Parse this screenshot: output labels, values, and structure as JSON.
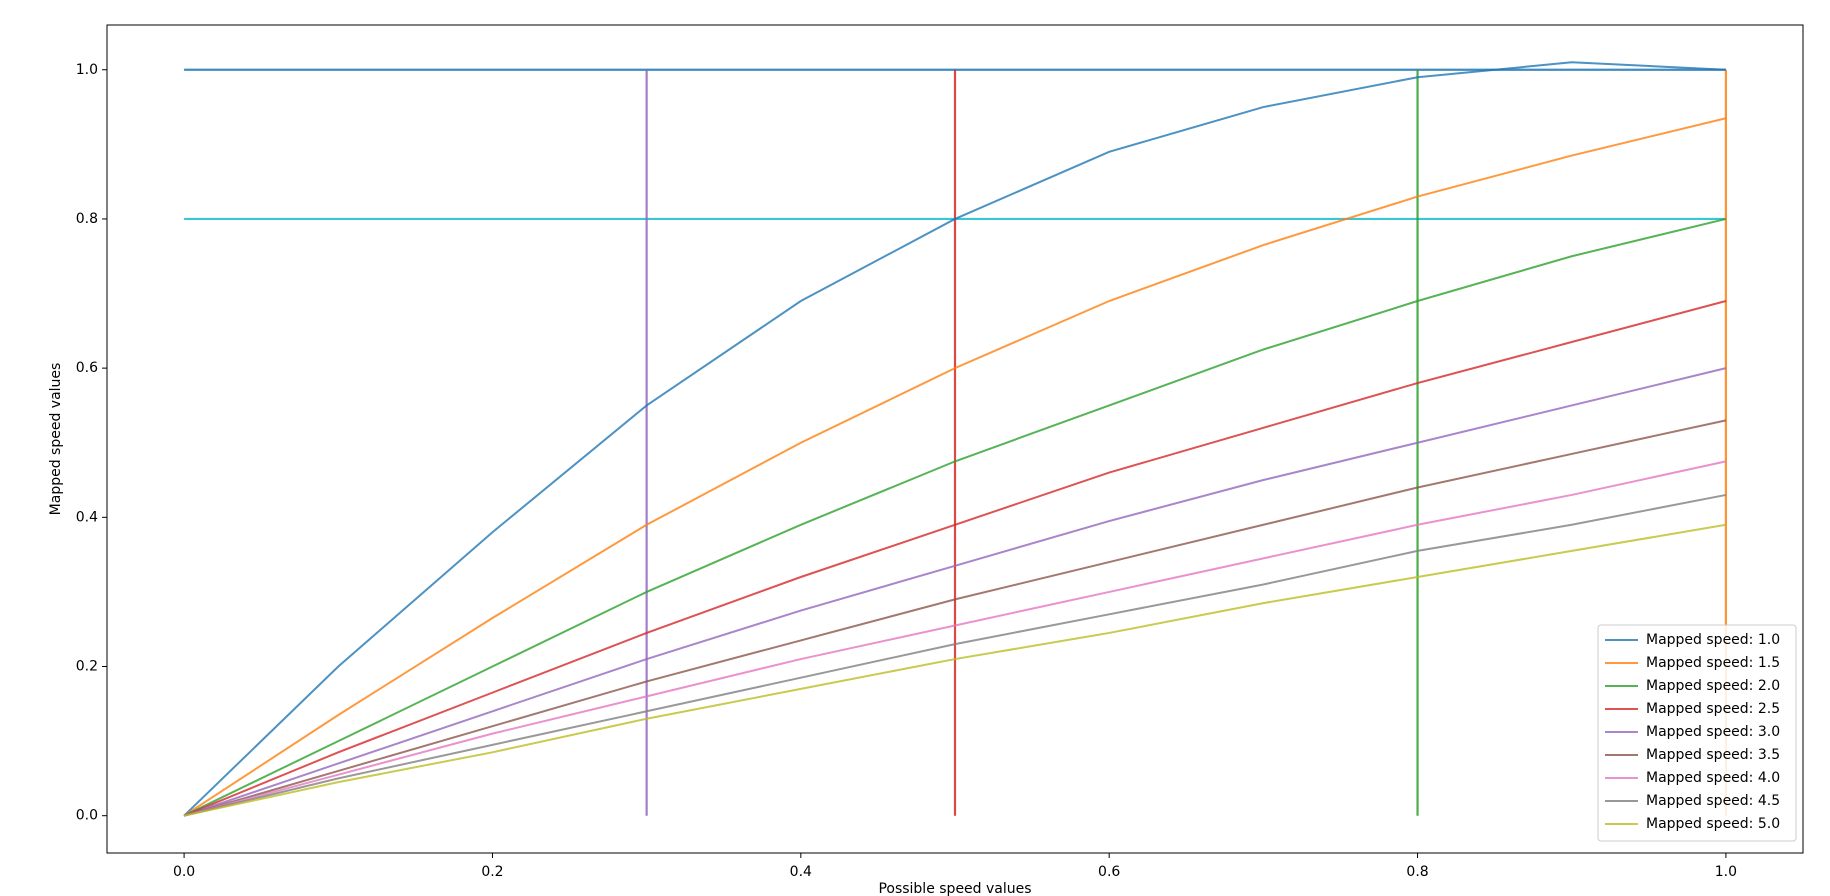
{
  "chart_data": {
    "type": "line",
    "xlabel": "Possible speed values",
    "ylabel": "Mapped speed values",
    "x": [
      0,
      0.1,
      0.2,
      0.3,
      0.4,
      0.5,
      0.6,
      0.7,
      0.8,
      0.9,
      1.0
    ],
    "series": [
      {
        "name": "Mapped speed: 1.0",
        "color": "#1f77b4",
        "values": [
          0,
          0.2,
          0.38,
          0.55,
          0.69,
          0.8,
          0.89,
          0.95,
          0.99,
          1.01,
          1.0
        ]
      },
      {
        "name": "Mapped speed: 1.5",
        "color": "#ff7f0e",
        "values": [
          0,
          0.135,
          0.265,
          0.39,
          0.5,
          0.6,
          0.69,
          0.765,
          0.83,
          0.885,
          0.935
        ]
      },
      {
        "name": "Mapped speed: 2.0",
        "color": "#2ca02c",
        "values": [
          0,
          0.1,
          0.2,
          0.3,
          0.39,
          0.475,
          0.55,
          0.625,
          0.69,
          0.75,
          0.8
        ]
      },
      {
        "name": "Mapped speed: 2.5",
        "color": "#d62728",
        "values": [
          0,
          0.085,
          0.165,
          0.245,
          0.32,
          0.39,
          0.46,
          0.52,
          0.58,
          0.635,
          0.69
        ]
      },
      {
        "name": "Mapped speed: 3.0",
        "color": "#9467bd",
        "values": [
          0,
          0.07,
          0.14,
          0.21,
          0.275,
          0.335,
          0.395,
          0.45,
          0.5,
          0.55,
          0.6
        ]
      },
      {
        "name": "Mapped speed: 3.5",
        "color": "#8c564b",
        "values": [
          0,
          0.06,
          0.12,
          0.18,
          0.235,
          0.29,
          0.34,
          0.39,
          0.44,
          0.485,
          0.53
        ]
      },
      {
        "name": "Mapped speed: 4.0",
        "color": "#e377c2",
        "values": [
          0,
          0.055,
          0.11,
          0.16,
          0.21,
          0.255,
          0.3,
          0.345,
          0.39,
          0.43,
          0.475
        ]
      },
      {
        "name": "Mapped speed: 4.5",
        "color": "#7f7f7f",
        "values": [
          0,
          0.05,
          0.095,
          0.14,
          0.185,
          0.23,
          0.27,
          0.31,
          0.355,
          0.39,
          0.43
        ]
      },
      {
        "name": "Mapped speed: 5.0",
        "color": "#bcbd22",
        "values": [
          0,
          0.045,
          0.085,
          0.13,
          0.17,
          0.21,
          0.245,
          0.285,
          0.32,
          0.355,
          0.39
        ]
      }
    ],
    "lines": [
      {
        "color": "#1f77b4",
        "x": [
          0,
          1
        ],
        "y": [
          1,
          1
        ]
      },
      {
        "color": "#17becf",
        "x": [
          0,
          1
        ],
        "y": [
          0.8,
          0.8
        ]
      },
      {
        "color": "#9467bd",
        "x": [
          0.3,
          0.3
        ],
        "y": [
          0,
          1
        ]
      },
      {
        "color": "#d62728",
        "x": [
          0.5,
          0.5
        ],
        "y": [
          0,
          1
        ]
      },
      {
        "color": "#2ca02c",
        "x": [
          0.8,
          0.8
        ],
        "y": [
          0,
          1
        ]
      },
      {
        "color": "#ff7f0e",
        "x": [
          1,
          1
        ],
        "y": [
          0,
          1
        ]
      }
    ],
    "xlim": [
      -0.05,
      1.05
    ],
    "ylim": [
      -0.05,
      1.06
    ],
    "xticks": [
      {
        "value": 0,
        "label": "0.0"
      },
      0.2,
      0.4,
      0.6,
      0.8,
      {
        "value": 1,
        "label": "1.0"
      }
    ],
    "yticks": [
      {
        "value": 0,
        "label": "0.0"
      },
      0.2,
      0.4,
      0.6,
      0.8,
      {
        "value": 1,
        "label": "1.0"
      }
    ],
    "legend": "lower right"
  }
}
